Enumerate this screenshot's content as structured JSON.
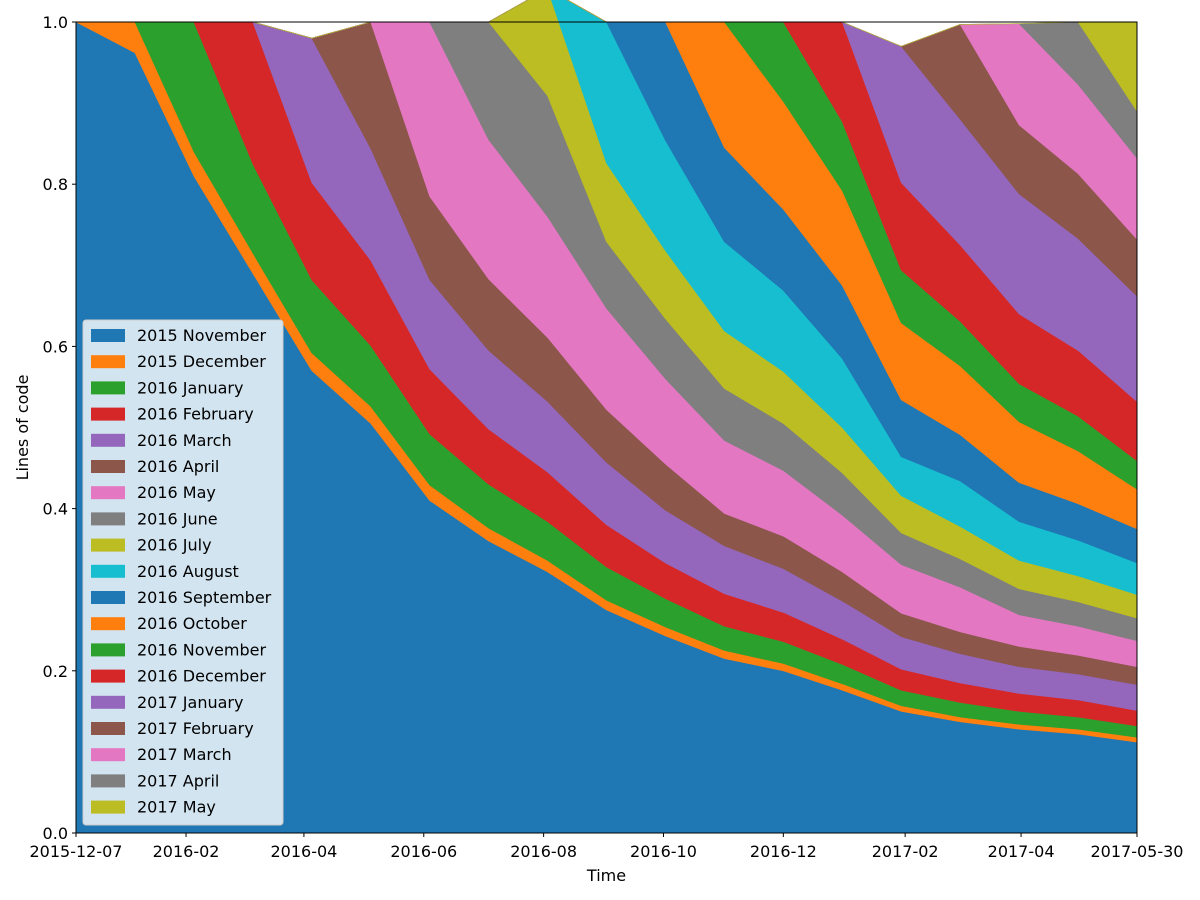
{
  "chart_data": {
    "type": "area",
    "stacked": true,
    "title": "",
    "xlabel": "Time",
    "ylabel": "Lines of code",
    "xlim": [
      "2015-12-07",
      "2017-05-30"
    ],
    "ylim": [
      0,
      1
    ],
    "x_ticks": [
      "2015-12-07",
      "2016-02",
      "2016-04",
      "2016-06",
      "2016-08",
      "2016-10",
      "2016-12",
      "2017-02",
      "2017-04",
      "2017-05-30"
    ],
    "x_tick_dates": [
      "2015-12-07",
      "2016-02-01",
      "2016-04-01",
      "2016-06-01",
      "2016-08-01",
      "2016-10-01",
      "2016-12-01",
      "2017-02-01",
      "2017-04-01",
      "2017-05-30"
    ],
    "y_ticks": [
      "0.0",
      "0.2",
      "0.4",
      "0.6",
      "0.8",
      "1.0"
    ],
    "grid": false,
    "legend_position": "lower-left",
    "x": [
      "2015-12-07",
      "2016-01-06",
      "2016-02-05",
      "2016-03-06",
      "2016-04-05",
      "2016-05-05",
      "2016-06-04",
      "2016-07-04",
      "2016-08-03",
      "2016-09-02",
      "2016-10-02",
      "2016-11-01",
      "2016-12-01",
      "2016-12-31",
      "2017-01-30",
      "2017-03-01",
      "2017-03-31",
      "2017-04-30",
      "2017-05-30"
    ],
    "series": [
      {
        "name": "2015 November",
        "color": "#1f77b4",
        "values": [
          1.0,
          0.962,
          0.81,
          0.69,
          0.57,
          0.505,
          0.41,
          0.36,
          0.322,
          0.275,
          0.243,
          0.215,
          0.2,
          0.176,
          0.15,
          0.137,
          0.128,
          0.122,
          0.112
        ]
      },
      {
        "name": "2015 December",
        "color": "#ff7f0e",
        "values": [
          0,
          0.038,
          0.03,
          0.025,
          0.022,
          0.021,
          0.019,
          0.016,
          0.014,
          0.012,
          0.011,
          0.01,
          0.009,
          0.008,
          0.007,
          0.006,
          0.006,
          0.006,
          0.006
        ]
      },
      {
        "name": "2016 January",
        "color": "#2ca02c",
        "values": [
          0,
          0,
          0.16,
          0.11,
          0.09,
          0.075,
          0.063,
          0.054,
          0.048,
          0.041,
          0.035,
          0.03,
          0.027,
          0.024,
          0.019,
          0.018,
          0.016,
          0.015,
          0.014
        ]
      },
      {
        "name": "2016 February",
        "color": "#d62728",
        "values": [
          0,
          0,
          0,
          0.175,
          0.12,
          0.105,
          0.08,
          0.068,
          0.061,
          0.052,
          0.044,
          0.04,
          0.036,
          0.031,
          0.026,
          0.024,
          0.022,
          0.021,
          0.019
        ]
      },
      {
        "name": "2016 March",
        "color": "#9467bd",
        "values": [
          0,
          0,
          0,
          0,
          0.178,
          0.138,
          0.11,
          0.097,
          0.087,
          0.077,
          0.065,
          0.059,
          0.054,
          0.047,
          0.04,
          0.036,
          0.033,
          0.032,
          0.032
        ]
      },
      {
        "name": "2016 April",
        "color": "#8c564b",
        "values": [
          0,
          0,
          0,
          0,
          0,
          0.156,
          0.103,
          0.088,
          0.079,
          0.065,
          0.057,
          0.04,
          0.04,
          0.036,
          0.029,
          0.027,
          0.025,
          0.023,
          0.022
        ]
      },
      {
        "name": "2016 May",
        "color": "#e377c2",
        "values": [
          0,
          0,
          0,
          0,
          0,
          0,
          0.215,
          0.172,
          0.149,
          0.125,
          0.105,
          0.09,
          0.081,
          0.07,
          0.06,
          0.055,
          0.039,
          0.036,
          0.032
        ]
      },
      {
        "name": "2016 June",
        "color": "#7f7f7f",
        "values": [
          0,
          0,
          0,
          0,
          0,
          0,
          0,
          0.145,
          0.149,
          0.082,
          0.074,
          0.064,
          0.058,
          0.052,
          0.039,
          0.035,
          0.032,
          0.03,
          0.028
        ]
      },
      {
        "name": "2016 July",
        "color": "#bcbd22",
        "values": [
          0,
          0,
          0,
          0,
          0,
          0,
          0,
          0,
          0.132,
          0.097,
          0.084,
          0.071,
          0.064,
          0.056,
          0.046,
          0.04,
          0.035,
          0.032,
          0.029
        ]
      },
      {
        "name": "2016 August",
        "color": "#17becf",
        "values": [
          0,
          0,
          0,
          0,
          0,
          0,
          0,
          0,
          0,
          0.174,
          0.136,
          0.11,
          0.1,
          0.085,
          0.048,
          0.056,
          0.048,
          0.044,
          0.039
        ]
      },
      {
        "name": "2016 September",
        "color": "#1f77b4",
        "values": [
          0,
          0,
          0,
          0,
          0,
          0,
          0,
          0,
          0,
          0,
          0.146,
          0.116,
          0.1,
          0.09,
          0.07,
          0.057,
          0.048,
          0.045,
          0.042
        ]
      },
      {
        "name": "2016 October",
        "color": "#ff7f0e",
        "values": [
          0,
          0,
          0,
          0,
          0,
          0,
          0,
          0,
          0,
          0,
          0,
          0.155,
          0.133,
          0.117,
          0.095,
          0.085,
          0.075,
          0.065,
          0.049
        ]
      },
      {
        "name": "2016 November",
        "color": "#2ca02c",
        "values": [
          0,
          0,
          0,
          0,
          0,
          0,
          0,
          0,
          0,
          0,
          0,
          0,
          0.098,
          0.085,
          0.065,
          0.055,
          0.047,
          0.043,
          0.035
        ]
      },
      {
        "name": "2016 December",
        "color": "#d62728",
        "values": [
          0,
          0,
          0,
          0,
          0,
          0,
          0,
          0,
          0,
          0,
          0,
          0,
          0,
          0.123,
          0.108,
          0.094,
          0.086,
          0.081,
          0.073
        ]
      },
      {
        "name": "2017 January",
        "color": "#9467bd",
        "values": [
          0,
          0,
          0,
          0,
          0,
          0,
          0,
          0,
          0,
          0,
          0,
          0,
          0,
          0,
          0.168,
          0.155,
          0.148,
          0.138,
          0.13
        ]
      },
      {
        "name": "2017 February",
        "color": "#8c564b",
        "values": [
          0,
          0,
          0,
          0,
          0,
          0,
          0,
          0,
          0,
          0,
          0,
          0,
          0,
          0,
          0,
          0.117,
          0.085,
          0.08,
          0.07
        ]
      },
      {
        "name": "2017 March",
        "color": "#e377c2",
        "values": [
          0,
          0,
          0,
          0,
          0,
          0,
          0,
          0,
          0,
          0,
          0,
          0,
          0,
          0,
          0,
          0,
          0.125,
          0.11,
          0.1
        ]
      },
      {
        "name": "2017 April",
        "color": "#7f7f7f",
        "values": [
          0,
          0,
          0,
          0,
          0,
          0,
          0,
          0,
          0,
          0,
          0,
          0,
          0,
          0,
          0,
          0,
          0,
          0.077,
          0.058
        ]
      },
      {
        "name": "2017 May",
        "color": "#bcbd22",
        "values": [
          0,
          0,
          0,
          0,
          0,
          0,
          0,
          0,
          0,
          0,
          0,
          0,
          0,
          0,
          0,
          0,
          0,
          0,
          0.11
        ]
      }
    ]
  }
}
